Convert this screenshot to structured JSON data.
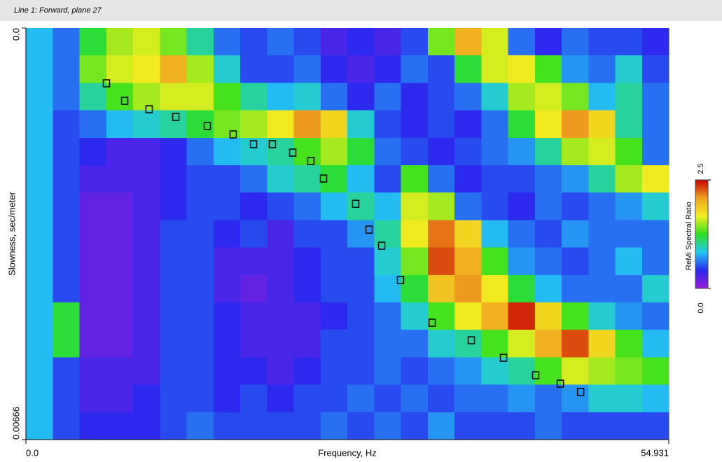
{
  "chart_data": {
    "type": "heatmap",
    "title": "Line 1: Forward, plane 27",
    "x_label": "Frequency, Hz",
    "y_label": "Slowness, sec/meter",
    "colorbar_label": "ReMi Spectral Ratio",
    "xlim": [
      0,
      54.931
    ],
    "xticks": [
      {
        "value": 0,
        "label": "0.0"
      },
      54.931
    ],
    "ylim": [
      0,
      0.00666
    ],
    "yticks": [
      {
        "value": 0,
        "label": "0.0"
      },
      0.00666
    ],
    "y_inverted": true,
    "zlim": [
      0,
      2.5
    ],
    "zticks": [
      {
        "value": 0,
        "label": "0.0"
      },
      2.5
    ],
    "colorscale": [
      "#9a1ad8",
      "#2a2af0",
      "#22c8f2",
      "#2ee01e",
      "#f2f020",
      "#f0a020",
      "#c80000"
    ],
    "z": [
      [
        0.8,
        0.6,
        1.2,
        1.5,
        1.6,
        1.4,
        1.0,
        0.6,
        0.5,
        0.6,
        0.5,
        0.3,
        0.4,
        0.3,
        0.5,
        1.4,
        2.0,
        1.6,
        0.6,
        0.4,
        0.6,
        0.5,
        0.5,
        0.4
      ],
      [
        0.8,
        0.6,
        1.4,
        1.6,
        1.7,
        2.0,
        1.5,
        0.9,
        0.5,
        0.5,
        0.6,
        0.4,
        0.3,
        0.4,
        0.6,
        0.5,
        1.2,
        1.6,
        1.7,
        1.3,
        0.7,
        0.6,
        0.9,
        0.5
      ],
      [
        0.8,
        0.6,
        1.0,
        1.3,
        1.5,
        1.6,
        1.6,
        1.3,
        1.0,
        0.8,
        0.9,
        0.6,
        0.4,
        0.6,
        0.4,
        0.5,
        0.6,
        0.9,
        1.5,
        1.6,
        1.4,
        0.8,
        1.0,
        0.6
      ],
      [
        0.8,
        0.5,
        0.6,
        0.8,
        0.9,
        1.0,
        1.2,
        1.4,
        1.5,
        1.7,
        2.1,
        1.8,
        0.9,
        0.5,
        0.4,
        0.5,
        0.4,
        0.6,
        1.2,
        1.7,
        2.1,
        1.8,
        1.0,
        0.6
      ],
      [
        0.8,
        0.5,
        0.4,
        0.3,
        0.3,
        0.4,
        0.6,
        0.8,
        0.9,
        1.0,
        1.3,
        1.5,
        1.2,
        0.6,
        0.5,
        0.4,
        0.5,
        0.6,
        0.7,
        1.0,
        1.5,
        1.6,
        1.3,
        0.6
      ],
      [
        0.8,
        0.5,
        0.3,
        0.3,
        0.3,
        0.4,
        0.5,
        0.5,
        0.6,
        0.9,
        1.0,
        1.2,
        0.8,
        0.5,
        1.3,
        0.6,
        0.4,
        0.5,
        0.5,
        0.6,
        0.7,
        1.0,
        1.5,
        1.7
      ],
      [
        0.8,
        0.5,
        0.2,
        0.2,
        0.3,
        0.4,
        0.5,
        0.5,
        0.4,
        0.5,
        0.6,
        0.8,
        1.0,
        0.8,
        1.6,
        1.5,
        0.6,
        0.5,
        0.4,
        0.6,
        0.5,
        0.6,
        0.7,
        0.9
      ],
      [
        0.8,
        0.5,
        0.2,
        0.2,
        0.3,
        0.5,
        0.5,
        0.4,
        0.5,
        0.3,
        0.5,
        0.5,
        0.7,
        1.0,
        1.7,
        2.2,
        1.8,
        0.8,
        0.6,
        0.5,
        0.7,
        0.6,
        0.6,
        0.6
      ],
      [
        0.8,
        0.5,
        0.2,
        0.2,
        0.3,
        0.5,
        0.5,
        0.3,
        0.3,
        0.3,
        0.4,
        0.5,
        0.5,
        0.9,
        1.4,
        2.3,
        2.0,
        1.3,
        0.7,
        0.6,
        0.5,
        0.6,
        0.8,
        0.6
      ],
      [
        0.8,
        0.5,
        0.2,
        0.2,
        0.3,
        0.5,
        0.5,
        0.3,
        0.2,
        0.3,
        0.4,
        0.5,
        0.5,
        0.8,
        1.2,
        1.9,
        2.1,
        1.7,
        1.2,
        0.8,
        0.6,
        0.6,
        0.6,
        0.9
      ],
      [
        0.8,
        1.2,
        0.2,
        0.2,
        0.3,
        0.5,
        0.5,
        0.4,
        0.3,
        0.3,
        0.3,
        0.4,
        0.5,
        0.6,
        0.9,
        1.3,
        1.7,
        2.0,
        2.4,
        1.8,
        1.3,
        0.9,
        0.7,
        0.6
      ],
      [
        0.8,
        1.2,
        0.2,
        0.2,
        0.3,
        0.5,
        0.5,
        0.4,
        0.3,
        0.3,
        0.3,
        0.5,
        0.5,
        0.6,
        0.6,
        0.9,
        1.0,
        1.3,
        1.6,
        2.0,
        2.3,
        1.8,
        1.3,
        0.8
      ],
      [
        0.8,
        0.5,
        0.3,
        0.3,
        0.3,
        0.5,
        0.5,
        0.4,
        0.4,
        0.3,
        0.4,
        0.5,
        0.5,
        0.6,
        0.5,
        0.6,
        0.7,
        0.9,
        1.0,
        1.3,
        1.6,
        1.5,
        1.4,
        1.3
      ],
      [
        0.8,
        0.5,
        0.3,
        0.3,
        0.4,
        0.5,
        0.5,
        0.4,
        0.5,
        0.4,
        0.5,
        0.5,
        0.6,
        0.5,
        0.6,
        0.5,
        0.6,
        0.6,
        0.7,
        0.6,
        0.7,
        0.9,
        0.9,
        0.8
      ],
      [
        0.8,
        0.5,
        0.4,
        0.4,
        0.4,
        0.5,
        0.6,
        0.5,
        0.5,
        0.5,
        0.5,
        0.6,
        0.5,
        0.6,
        0.5,
        0.7,
        0.5,
        0.5,
        0.5,
        0.6,
        0.5,
        0.5,
        0.5,
        0.5
      ]
    ],
    "picks": {
      "color": "#000000",
      "x": [
        6.88,
        8.44,
        10.53,
        12.81,
        15.5,
        17.71,
        19.45,
        21.06,
        22.8,
        24.35,
        25.43,
        28.18,
        29.32,
        30.4,
        32.01,
        34.71,
        38.06,
        40.81,
        43.56,
        45.66,
        47.4
      ],
      "y": [
        0.000895,
        0.001178,
        0.001314,
        0.001439,
        0.001586,
        0.001722,
        0.00188,
        0.00188,
        0.002016,
        0.002152,
        0.002436,
        0.002844,
        0.003262,
        0.003523,
        0.004078,
        0.004769,
        0.005053,
        0.005336,
        0.005619,
        0.005755,
        0.005891
      ]
    }
  }
}
